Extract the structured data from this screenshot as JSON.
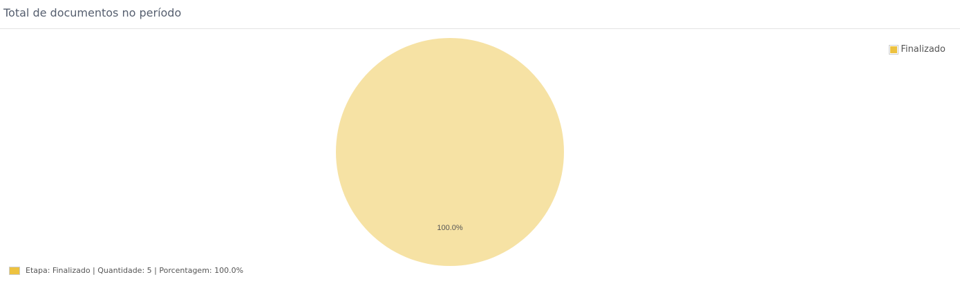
{
  "title": "Total de documentos no período",
  "chart_data": {
    "type": "pie",
    "categories": [
      "Finalizado"
    ],
    "values": [
      5
    ],
    "percent_labels": [
      "100.0%"
    ],
    "colors": [
      "#EDC240"
    ],
    "legend": {
      "entries": [
        "Finalizado"
      ],
      "placement": "top-right"
    }
  },
  "footer": {
    "text": "Etapa: Finalizado | Quantidade: 5 | Porcentagem: 100.0%"
  }
}
